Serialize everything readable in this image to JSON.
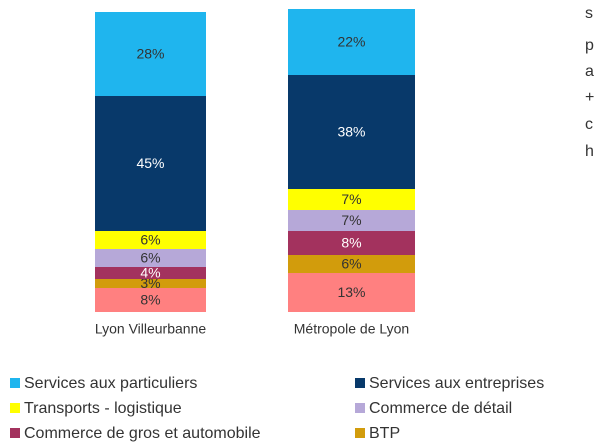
{
  "chart_data": {
    "type": "stacked_bar",
    "categories": [
      "Lyon Villeurbanne",
      "Métropole de Lyon"
    ],
    "series": [
      {
        "name": "Services aux particuliers",
        "color": "#1fb5ee",
        "values": [
          28,
          22
        ],
        "value_labels": [
          "28%",
          "22%"
        ]
      },
      {
        "name": "Services aux entreprises",
        "color": "#08396a",
        "values": [
          45,
          38
        ],
        "value_labels": [
          "45%",
          "38%"
        ]
      },
      {
        "name": "Transports - logistique",
        "color": "#ffff00",
        "values": [
          6,
          7
        ],
        "value_labels": [
          "6%",
          "7%"
        ]
      },
      {
        "name": "Commerce de détail",
        "color": "#b6a8d8",
        "values": [
          6,
          7
        ],
        "value_labels": [
          "6%",
          "7%"
        ]
      },
      {
        "name": "Commerce de gros et automobile",
        "color": "#a3325e",
        "values": [
          4,
          8
        ],
        "value_labels": [
          "4%",
          "8%"
        ]
      },
      {
        "name": "BTP",
        "color": "#d29c0c",
        "values": [
          3,
          6
        ],
        "value_labels": [
          "3%",
          "6%"
        ]
      },
      {
        "color": "#ff8080",
        "values": [
          8,
          13
        ],
        "value_labels": [
          "8%",
          "13%"
        ]
      }
    ],
    "ylim": [
      0,
      100
    ],
    "annotations": [
      "s",
      "p",
      "a",
      "+",
      "c",
      "h"
    ]
  }
}
